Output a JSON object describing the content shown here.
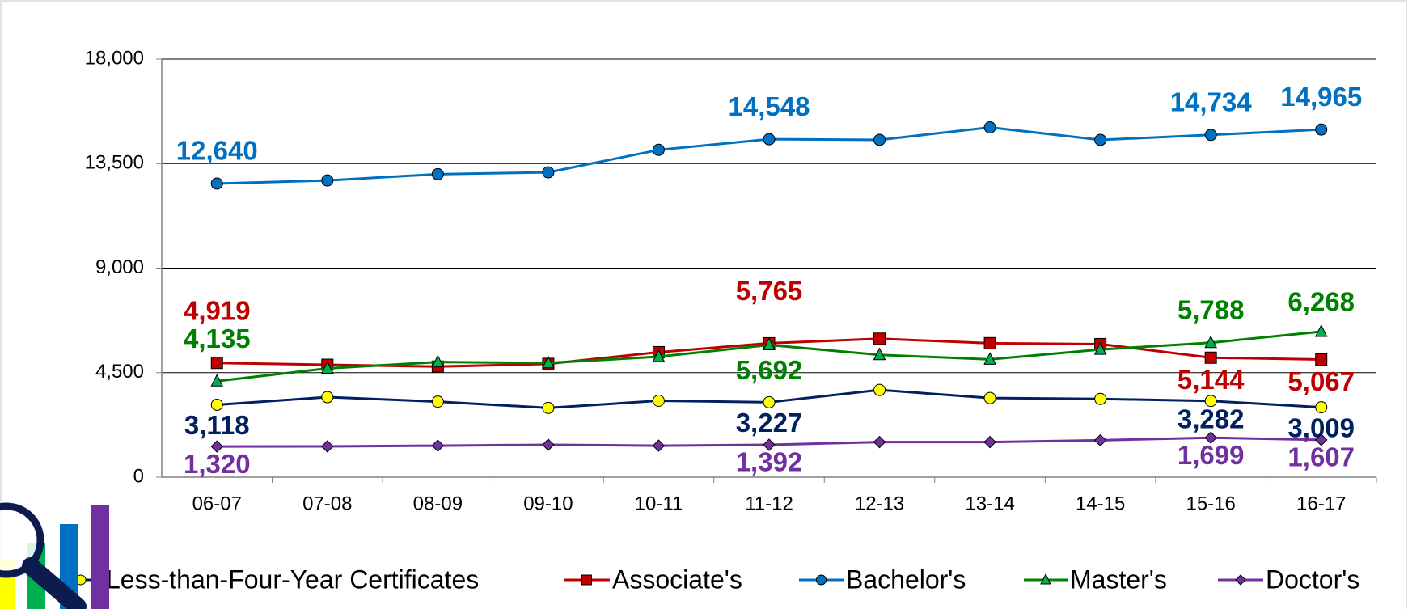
{
  "chart_data": {
    "type": "line",
    "categories": [
      "06-07",
      "07-08",
      "08-09",
      "09-10",
      "10-11",
      "11-12",
      "12-13",
      "13-14",
      "14-15",
      "15-16",
      "16-17"
    ],
    "ylim": [
      0,
      18000
    ],
    "yticks": [
      {
        "value": 0,
        "label": "0"
      },
      {
        "value": 4500,
        "label": "4,500"
      },
      {
        "value": 9000,
        "label": "9,000"
      },
      {
        "value": 13500,
        "label": "13,500"
      },
      {
        "value": 18000,
        "label": "18,000"
      }
    ],
    "grid": true,
    "legend": "bottom",
    "series": [
      {
        "name": "Less-than-Four-Year Certificates",
        "color": "#002060",
        "marker": "circle",
        "marker_color": "#ffff00",
        "values": [
          3118,
          3445,
          3252,
          2981,
          3290,
          3227,
          3755,
          3406,
          3368,
          3282,
          3009
        ],
        "value_labels": [
          "3,118",
          null,
          null,
          null,
          null,
          "3,227",
          null,
          null,
          null,
          "3,282",
          "3,009"
        ]
      },
      {
        "name": "Associate's",
        "color": "#c00000",
        "marker": "square",
        "marker_color": "#c00000",
        "values": [
          4919,
          4839,
          4761,
          4877,
          5381,
          5765,
          5961,
          5768,
          5729,
          5144,
          5067
        ],
        "value_labels": [
          "4,919",
          null,
          null,
          null,
          null,
          "5,765",
          null,
          null,
          null,
          "5,144",
          "5,067"
        ]
      },
      {
        "name": "Bachelor's",
        "color": "#0070c0",
        "marker": "circle",
        "marker_color": "#0070c0",
        "values": [
          12640,
          12774,
          13045,
          13123,
          14090,
          14548,
          14520,
          15058,
          14520,
          14734,
          14965
        ],
        "value_labels": [
          "12,640",
          null,
          null,
          null,
          null,
          "14,548",
          null,
          null,
          null,
          "14,734",
          "14,965"
        ]
      },
      {
        "name": "Master's",
        "color": "#008000",
        "marker": "triangle",
        "marker_color": "#00b050",
        "values": [
          4135,
          4684,
          4955,
          4916,
          5187,
          5692,
          5265,
          5071,
          5497,
          5788,
          6268
        ],
        "value_labels": [
          "4,135",
          null,
          null,
          null,
          null,
          "5,692",
          null,
          null,
          null,
          "5,788",
          "6,268"
        ]
      },
      {
        "name": "Doctor's",
        "color": "#7030a0",
        "marker": "diamond",
        "marker_color": "#7030a0",
        "values": [
          1320,
          1325,
          1355,
          1394,
          1355,
          1392,
          1510,
          1510,
          1587,
          1699,
          1607
        ],
        "value_labels": [
          "1,320",
          null,
          null,
          null,
          null,
          "1,392",
          null,
          null,
          null,
          "1,699",
          "1,607"
        ]
      }
    ]
  }
}
